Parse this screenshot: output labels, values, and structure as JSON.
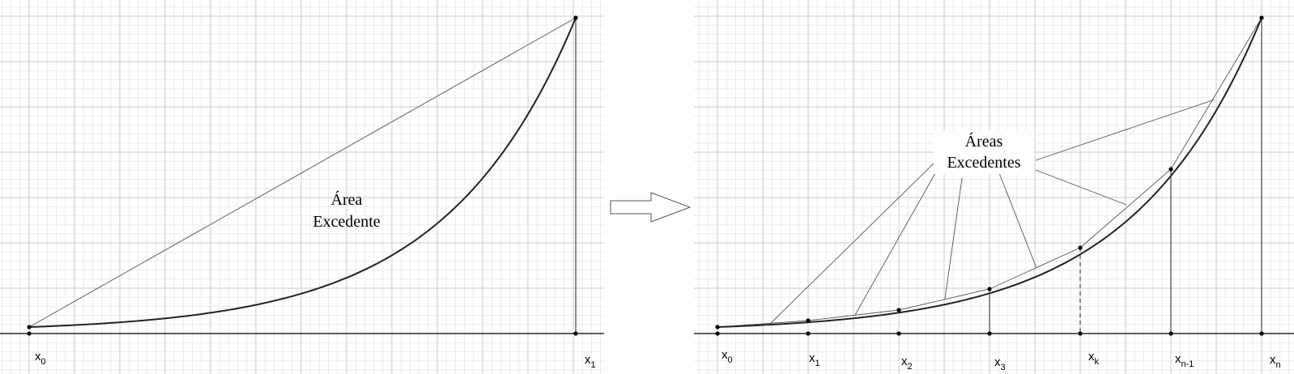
{
  "left_panel": {
    "area_label_line1": "Área",
    "area_label_line2": "Excedente",
    "x_labels": [
      {
        "base": "x",
        "sub": "0"
      },
      {
        "base": "x",
        "sub": "1"
      }
    ]
  },
  "right_panel": {
    "area_label_line1": "Áreas",
    "area_label_line2": "Excedentes",
    "x_labels": [
      {
        "base": "x",
        "sub": "0"
      },
      {
        "base": "x",
        "sub": "1"
      },
      {
        "base": "x",
        "sub": "2"
      },
      {
        "base": "x",
        "sub": "3"
      },
      {
        "base": "x",
        "sub": "k"
      },
      {
        "base": "x",
        "sub": "n-1"
      },
      {
        "base": "x",
        "sub": "n"
      }
    ]
  },
  "arrow_icon": "right-arrow-icon"
}
